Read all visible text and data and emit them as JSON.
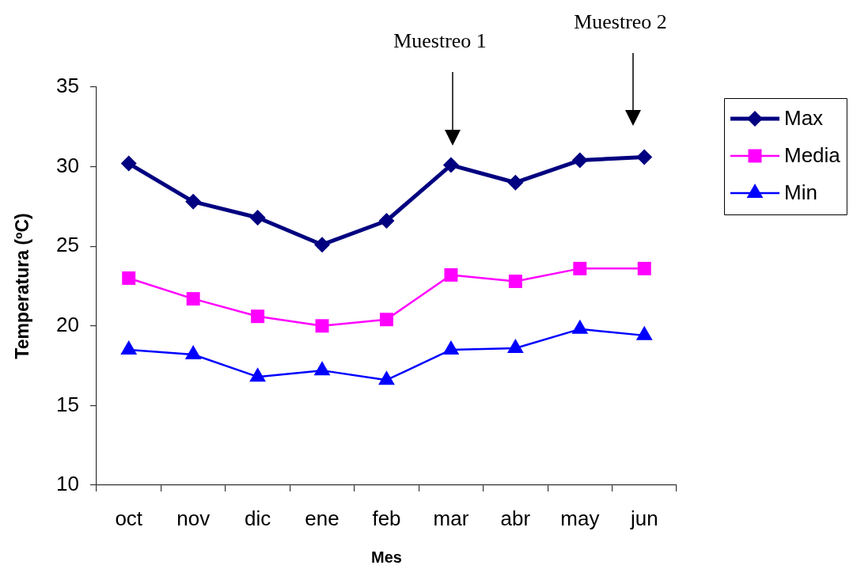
{
  "chart_data": {
    "type": "line",
    "xlabel": "Mes",
    "ylabel": "Temperatura (ºC)",
    "categories": [
      "oct",
      "nov",
      "dic",
      "ene",
      "feb",
      "mar",
      "abr",
      "may",
      "jun"
    ],
    "series": [
      {
        "name": "Max",
        "color": "#000080",
        "marker": "diamond",
        "values": [
          30.2,
          27.8,
          26.8,
          25.1,
          26.6,
          30.1,
          29.0,
          30.4,
          30.6
        ]
      },
      {
        "name": "Media",
        "color": "#ff00ff",
        "marker": "square",
        "values": [
          23.0,
          21.7,
          20.6,
          20.0,
          20.4,
          23.2,
          22.8,
          23.6,
          23.6
        ]
      },
      {
        "name": "Min",
        "color": "#0000ff",
        "marker": "triangle",
        "values": [
          18.5,
          18.2,
          16.8,
          17.2,
          16.6,
          18.5,
          18.6,
          19.8,
          19.4
        ]
      }
    ],
    "ylim": [
      10,
      35
    ],
    "yticks": [
      10,
      15,
      20,
      25,
      30,
      35
    ],
    "grid": false,
    "legend": "top right",
    "line_style": "solid",
    "annotations": [
      "Muestreo 1",
      "Muestreo 2"
    ]
  }
}
